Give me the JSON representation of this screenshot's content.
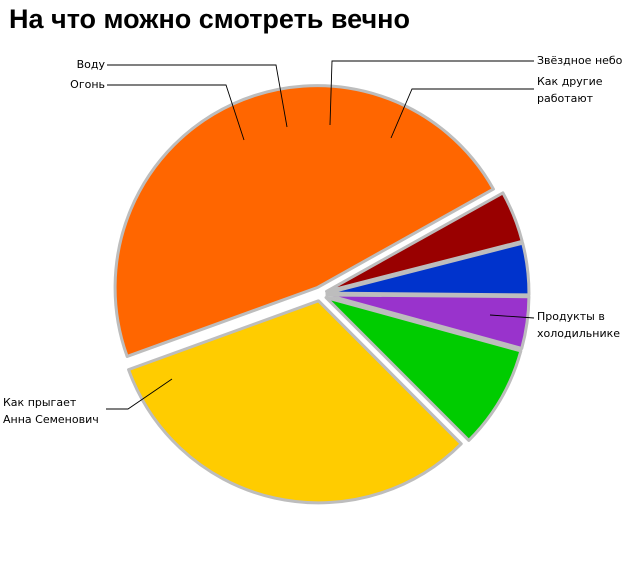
{
  "chart_data": {
    "type": "pie",
    "title": "На что можно смотреть вечно",
    "legend": "none",
    "slices": [
      {
        "label": [
          "Звёздное небо"
        ],
        "value": 4,
        "color": "#9933cc"
      },
      {
        "label": [
          "Как другие",
          "работают"
        ],
        "value": 8,
        "color": "#00cc00"
      },
      {
        "label": [
          "Продукты в",
          "холодильнике"
        ],
        "value": 31,
        "color": "#ffcc00"
      },
      {
        "label": [
          "Как прыгает",
          "Анна Семенович"
        ],
        "value": 46,
        "color": "#ff6600"
      },
      {
        "label": [
          "Огонь"
        ],
        "value": 4,
        "color": "#990000"
      },
      {
        "label": [
          "Воду"
        ],
        "value": 4,
        "color": "#0033cc"
      }
    ]
  }
}
